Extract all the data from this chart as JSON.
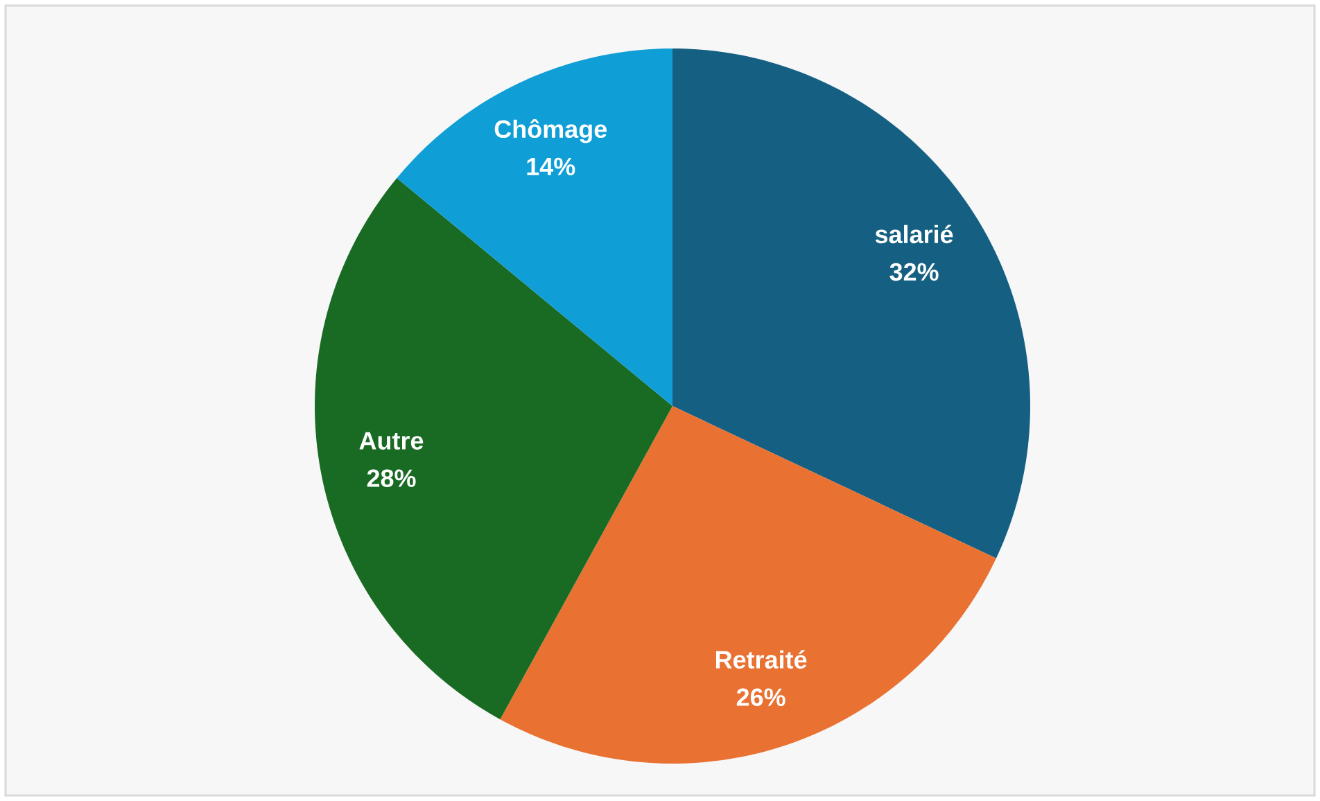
{
  "chart_data": {
    "type": "pie",
    "categories": [
      "salarié",
      "Retraité",
      "Autre",
      "Chômage"
    ],
    "values": [
      32,
      26,
      28,
      14
    ],
    "value_labels": [
      "32%",
      "26%",
      "28%",
      "14%"
    ],
    "colors": [
      "#156082",
      "#e97132",
      "#196b24",
      "#0f9ed5"
    ]
  }
}
